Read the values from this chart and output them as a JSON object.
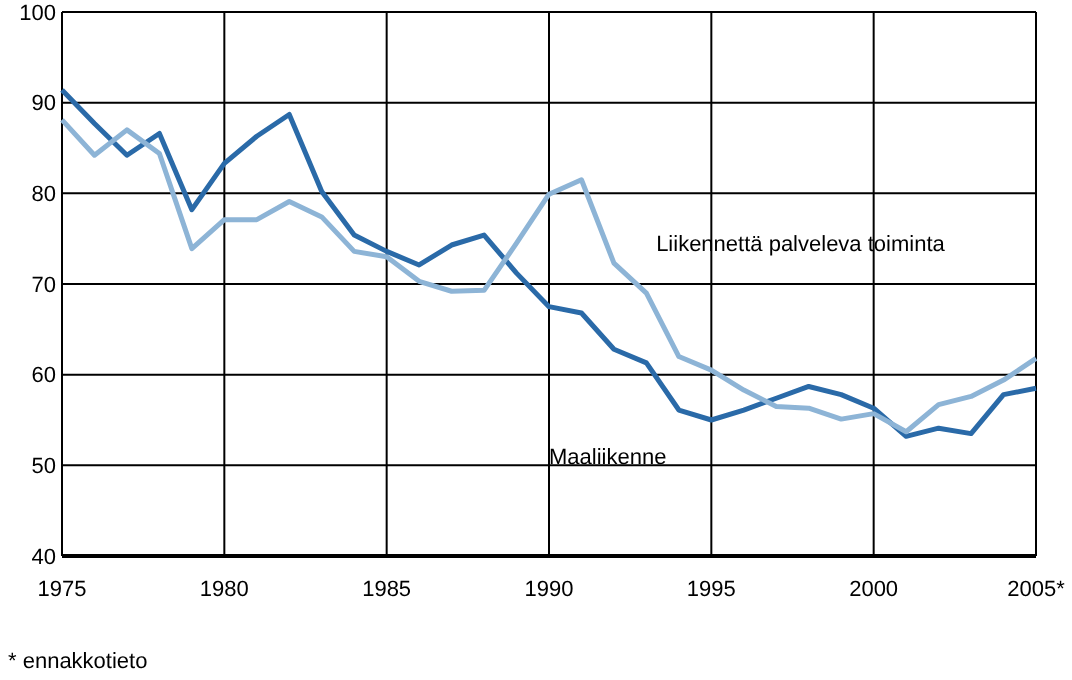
{
  "chart_data": {
    "type": "line",
    "x": [
      1975,
      1976,
      1977,
      1978,
      1979,
      1980,
      1981,
      1982,
      1983,
      1984,
      1985,
      1986,
      1987,
      1988,
      1989,
      1990,
      1991,
      1992,
      1993,
      1994,
      1995,
      1996,
      1997,
      1998,
      1999,
      2000,
      2001,
      2002,
      2003,
      2004,
      2005
    ],
    "series": [
      {
        "name": "Maaliikenne",
        "color": "#2a6aa8",
        "values": [
          91.4,
          87.7,
          84.2,
          86.6,
          78.2,
          83.3,
          86.3,
          88.7,
          80.2,
          75.4,
          73.6,
          72.1,
          74.3,
          75.4,
          71.2,
          67.5,
          66.8,
          62.8,
          61.3,
          56.1,
          55.0,
          56.1,
          57.4,
          58.7,
          57.8,
          56.3,
          53.2,
          54.1,
          53.5,
          57.8,
          58.5
        ]
      },
      {
        "name": "Liikennettä palveleva toiminta",
        "color": "#8db4d6",
        "values": [
          88.1,
          84.2,
          87.0,
          84.4,
          73.9,
          77.1,
          77.1,
          79.1,
          77.4,
          73.6,
          73.0,
          70.3,
          69.2,
          69.3,
          74.5,
          79.9,
          81.5,
          72.3,
          69.0,
          62.0,
          60.5,
          58.3,
          56.5,
          56.3,
          55.1,
          55.7,
          53.7,
          56.7,
          57.6,
          59.4,
          61.8
        ]
      }
    ],
    "xlim": [
      1975,
      2005
    ],
    "xticks": [
      1975,
      1980,
      1985,
      1990,
      1995,
      2000,
      {
        "value": 2005,
        "label": "2005*"
      }
    ],
    "ylim": [
      40,
      100
    ],
    "yticks": [
      40,
      50,
      60,
      70,
      80,
      90,
      100
    ],
    "grid": true,
    "legend": false,
    "marker": "none",
    "line_style": "solid",
    "annotations": [
      "* ennakkotieto"
    ]
  }
}
